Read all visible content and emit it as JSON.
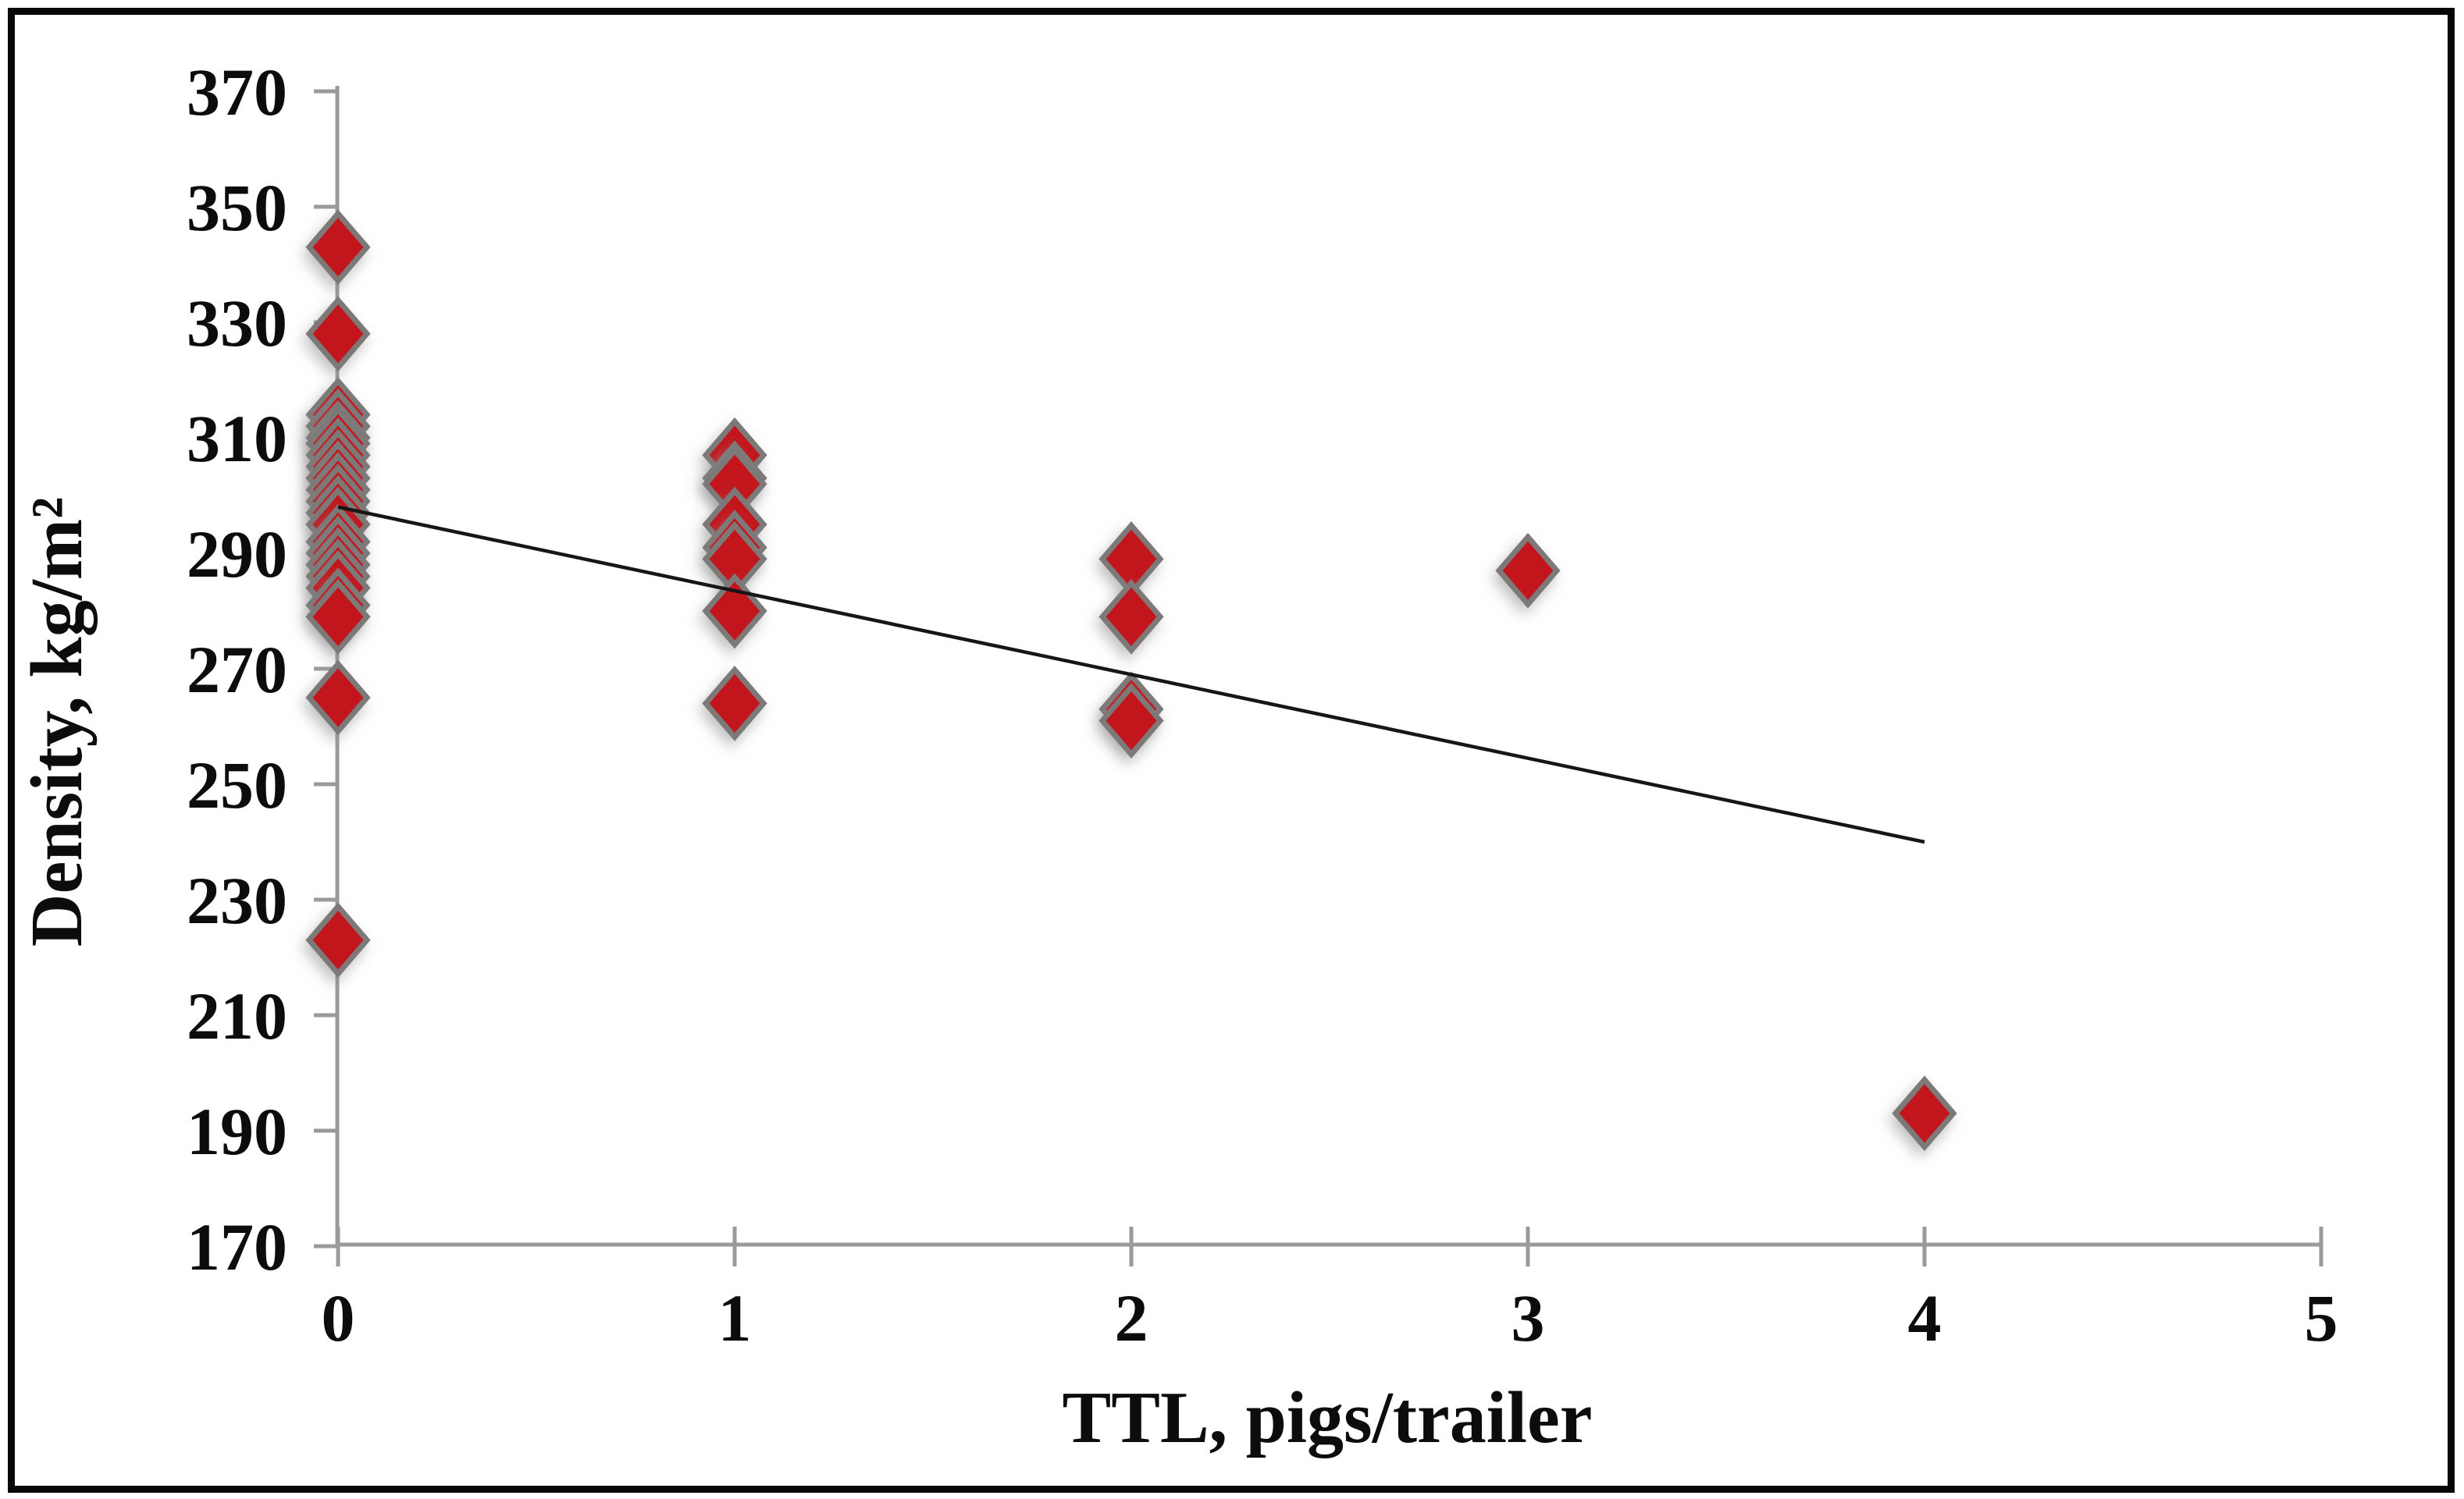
{
  "figure": {
    "background": "#ffffff",
    "border_color": "#070707"
  },
  "chart_data": {
    "type": "scatter",
    "title": "",
    "xlabel": "TTL, pigs/trailer",
    "ylabel": "Density, kg/m²",
    "xlim": [
      0,
      5
    ],
    "ylim": [
      170,
      370
    ],
    "x_ticks": [
      0,
      1,
      2,
      3,
      4,
      5
    ],
    "y_ticks": [
      370,
      350,
      330,
      310,
      290,
      270,
      250,
      230,
      210,
      190,
      170
    ],
    "grid": false,
    "legend": "none",
    "axis_color": "#9a9a9a",
    "marker": {
      "shape": "diamond",
      "fill": "#c2121e",
      "stroke": "#7d7979",
      "name": "density-point"
    },
    "points": [
      [
        0,
        343
      ],
      [
        0,
        328
      ],
      [
        0,
        314
      ],
      [
        0,
        312
      ],
      [
        0,
        310
      ],
      [
        0,
        309
      ],
      [
        0,
        307
      ],
      [
        0,
        305
      ],
      [
        0,
        303
      ],
      [
        0,
        301
      ],
      [
        0,
        299
      ],
      [
        0,
        297
      ],
      [
        0,
        295
      ],
      [
        0,
        292
      ],
      [
        0,
        290
      ],
      [
        0,
        288
      ],
      [
        0,
        286
      ],
      [
        0,
        284
      ],
      [
        0,
        281
      ],
      [
        0,
        279
      ],
      [
        0,
        265
      ],
      [
        0,
        223
      ],
      [
        1,
        307
      ],
      [
        1,
        303
      ],
      [
        1,
        302
      ],
      [
        1,
        295
      ],
      [
        1,
        291
      ],
      [
        1,
        289
      ],
      [
        1,
        280
      ],
      [
        1,
        264
      ],
      [
        2,
        289
      ],
      [
        2,
        279
      ],
      [
        2,
        263
      ],
      [
        2,
        261
      ],
      [
        3,
        287
      ],
      [
        4,
        193
      ]
    ],
    "trendline": {
      "x1": 0,
      "y1": 298,
      "x2": 4,
      "y2": 240,
      "color": "#161616"
    }
  }
}
